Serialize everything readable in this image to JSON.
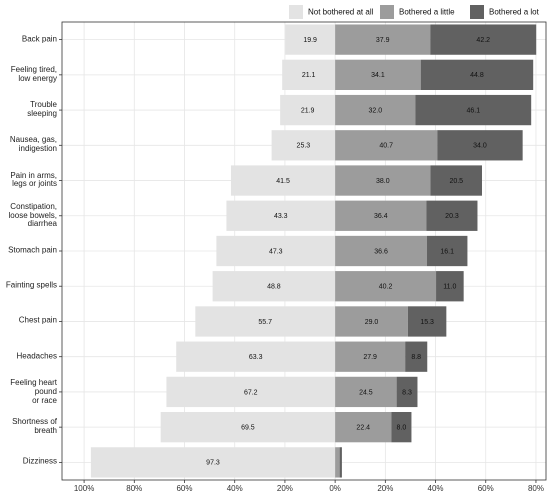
{
  "chart_data": {
    "type": "diverging_bar",
    "categories": [
      "Back pain",
      "Feeling tired,\nlow energy",
      "Trouble sleeping",
      "Nausea, gas,\nindigestion",
      "Pain in arms,\nlegs or joints",
      "Constipation,\nloose bowels,\ndiarrhea",
      "Stomach pain",
      "Fainting spells",
      "Chest pain",
      "Headaches",
      "Feeling heart pound\nor race",
      "Shortness of breath",
      "Dizziness"
    ],
    "series": [
      {
        "name": "Not bothered at all",
        "color": "#e3e3e3",
        "side": "left",
        "values": [
          19.9,
          21.1,
          21.9,
          25.3,
          41.5,
          43.3,
          47.3,
          48.8,
          55.7,
          63.3,
          67.2,
          69.5,
          97.3
        ],
        "value_labels": [
          "19.9",
          "21.1",
          "21.9",
          "25.3",
          "41.5",
          "43.3",
          "47.3",
          "48.8",
          "55.7",
          "63.3",
          "67.2",
          "69.5",
          "97.3"
        ]
      },
      {
        "name": "Bothered a little",
        "color": "#9c9c9c",
        "side": "right",
        "values": [
          37.9,
          34.1,
          32.0,
          40.7,
          38.0,
          36.4,
          36.6,
          40.2,
          29.0,
          27.9,
          24.5,
          22.4,
          1.8
        ],
        "value_labels": [
          "37.9",
          "34.1",
          "32.0",
          "40.7",
          "38.0",
          "36.4",
          "36.6",
          "40.2",
          "29.0",
          "27.9",
          "24.5",
          "22.4",
          null
        ]
      },
      {
        "name": "Bothered a lot",
        "color": "#616161",
        "side": "right",
        "values": [
          42.2,
          44.8,
          46.1,
          34.0,
          20.5,
          20.3,
          16.1,
          11.0,
          15.3,
          8.8,
          8.3,
          8.0,
          0.9
        ],
        "value_labels": [
          "42.2",
          "44.8",
          "46.1",
          "34.0",
          "20.5",
          "20.3",
          "16.1",
          "11.0",
          "15.3",
          "8.8",
          "8.3",
          "8.0",
          null
        ]
      }
    ],
    "xlim": [
      -108.8,
      84
    ],
    "xticks": [
      {
        "value": -100,
        "label": "100%"
      },
      {
        "value": -80,
        "label": "80%"
      },
      {
        "value": -60,
        "label": "60%"
      },
      {
        "value": -40,
        "label": "40%"
      },
      {
        "value": -20,
        "label": "20%"
      },
      {
        "value": 0,
        "label": "0%"
      },
      {
        "value": 20,
        "label": "20%"
      },
      {
        "value": 40,
        "label": "40%"
      },
      {
        "value": 60,
        "label": "60%"
      },
      {
        "value": 80,
        "label": "80%"
      }
    ],
    "grid": true,
    "legend": "top-right"
  }
}
